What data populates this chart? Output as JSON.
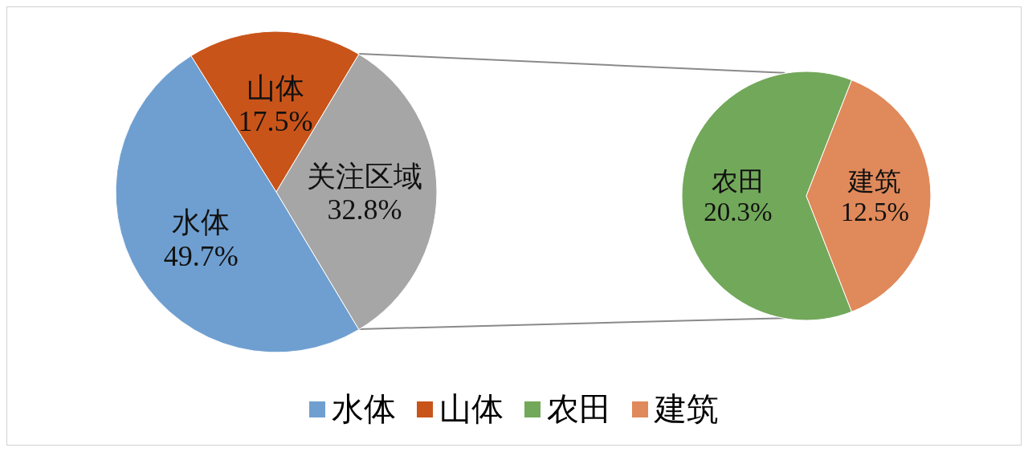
{
  "chart_data": [
    {
      "type": "pie",
      "categories": [
        "水体",
        "山体",
        "关注区域"
      ],
      "values": [
        49.7,
        17.5,
        32.8
      ],
      "colors": [
        "#6f9fd0",
        "#c9541a",
        "#a6a6a6"
      ],
      "value_labels": [
        "49.7%",
        "17.5%",
        "32.8%"
      ],
      "legend": "bottom"
    },
    {
      "type": "pie",
      "categories": [
        "农田",
        "建筑"
      ],
      "values": [
        20.3,
        12.5
      ],
      "colors": [
        "#72a85a",
        "#e0895a"
      ],
      "value_labels": [
        "20.3%",
        "12.5%"
      ],
      "legend": "bottom"
    }
  ]
}
